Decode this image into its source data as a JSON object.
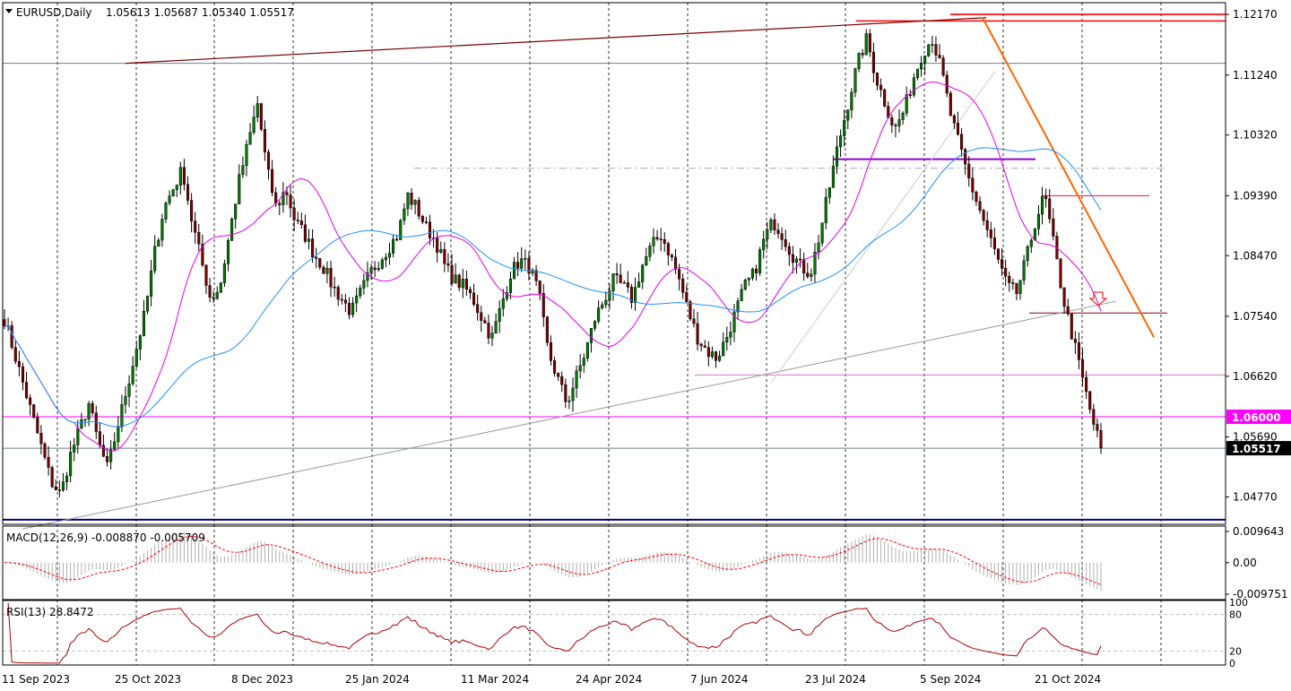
{
  "header": {
    "symbol_label": "EURUSD,Daily",
    "ohlc": "1.05613 1.05687 1.05340 1.05517"
  },
  "macd_panel": {
    "label": "MACD(12,26,9) -0.008870 -0.005709",
    "ticks": [
      {
        "value": 0.009643,
        "label": "0.009643"
      },
      {
        "value": 0.0,
        "label": "0.00"
      },
      {
        "value": -0.009751,
        "label": "-0.009751"
      }
    ]
  },
  "rsi_panel": {
    "label": "RSI(13) 28.8472",
    "ticks": [
      {
        "value": 100,
        "label": "100"
      },
      {
        "value": 80,
        "label": "80"
      },
      {
        "value": 20,
        "label": "20"
      },
      {
        "value": 0,
        "label": "0"
      }
    ]
  },
  "chart_data": {
    "type": "candlestick",
    "symbol": "EURUSD",
    "timeframe": "Daily",
    "x_labels": [
      "11 Sep 2023",
      "25 Oct 2023",
      "8 Dec 2023",
      "25 Jan 2024",
      "11 Mar 2024",
      "24 Apr 2024",
      "7 Jun 2024",
      "23 Jul 2024",
      "5 Sep 2024",
      "21 Oct 2024"
    ],
    "y_ticks": [
      "1.12170",
      "1.11240",
      "1.10320",
      "1.09390",
      "1.08470",
      "1.07540",
      "1.06620",
      "1.05690",
      "1.04770"
    ],
    "ylim": [
      1.0435,
      1.1235
    ],
    "price_badges": [
      {
        "value": 1.06,
        "label": "1.06000",
        "color": "#ff00ff"
      },
      {
        "value": 1.05517,
        "label": "1.05517",
        "color": "#000000"
      }
    ],
    "horizontal_levels": [
      {
        "value": 1.1207,
        "color": "#ff0000"
      },
      {
        "value": 1.1217,
        "color": "#ff0000"
      },
      {
        "value": 1.1142,
        "color": "#708090"
      },
      {
        "value": 1.0995,
        "color": "#9400d3"
      },
      {
        "value": 1.0981,
        "color": "#a9a9a9"
      },
      {
        "value": 1.0939,
        "color": "#dc143c"
      },
      {
        "value": 1.0759,
        "color": "#8b0000"
      },
      {
        "value": 1.0664,
        "color": "#da70d6"
      },
      {
        "value": 1.06,
        "color": "#ff00ff"
      },
      {
        "value": 1.05517,
        "color": "#708090"
      },
      {
        "value": 1.0442,
        "color": "#00008b"
      }
    ],
    "grid": true,
    "ma_colors": {
      "fast": "#e600e6",
      "slow": "#1e90ff"
    },
    "candle_colors": {
      "up": "#007a00",
      "down": "#7a0000"
    },
    "closes_sampled": [
      1.075,
      1.07,
      1.065,
      1.06,
      1.055,
      1.05,
      1.048,
      1.054,
      1.058,
      1.062,
      1.056,
      1.052,
      1.058,
      1.064,
      1.07,
      1.076,
      1.085,
      1.092,
      1.095,
      1.098,
      1.09,
      1.084,
      1.078,
      1.08,
      1.088,
      1.096,
      1.102,
      1.108,
      1.098,
      1.092,
      1.095,
      1.09,
      1.088,
      1.085,
      1.083,
      1.08,
      1.078,
      1.076,
      1.079,
      1.082,
      1.084,
      1.086,
      1.088,
      1.094,
      1.092,
      1.089,
      1.087,
      1.083,
      1.081,
      1.08,
      1.078,
      1.075,
      1.072,
      1.077,
      1.082,
      1.084,
      1.083,
      1.079,
      1.07,
      1.066,
      1.062,
      1.066,
      1.07,
      1.075,
      1.078,
      1.081,
      1.08,
      1.078,
      1.083,
      1.086,
      1.088,
      1.085,
      1.081,
      1.076,
      1.072,
      1.07,
      1.069,
      1.072,
      1.076,
      1.08,
      1.082,
      1.087,
      1.09,
      1.088,
      1.085,
      1.083,
      1.082,
      1.088,
      1.095,
      1.102,
      1.108,
      1.114,
      1.118,
      1.112,
      1.108,
      1.104,
      1.107,
      1.112,
      1.116,
      1.118,
      1.113,
      1.106,
      1.101,
      1.096,
      1.092,
      1.088,
      1.084,
      1.08,
      1.079,
      1.084,
      1.09,
      1.094,
      1.086,
      1.078,
      1.072,
      1.066,
      1.06,
      1.0552
    ]
  }
}
